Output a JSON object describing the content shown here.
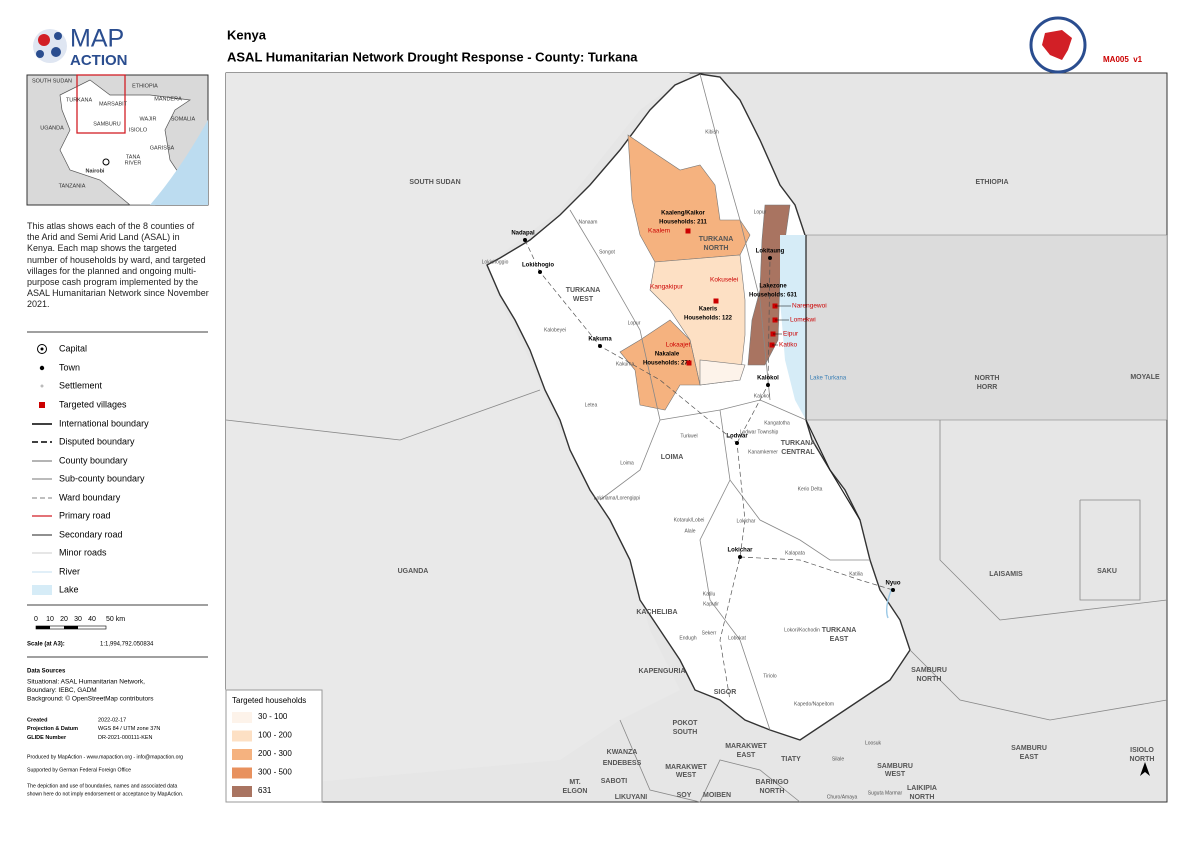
{
  "header": {
    "country": "Kenya",
    "title": "ASAL Humanitarian Network Drought Response - County: Turkana",
    "map_id": "MA005  v1"
  },
  "logo": {
    "top": "MAP",
    "bottom": "ACTION"
  },
  "inset": {
    "labels": [
      "SOUTH SUDAN",
      "ETHIOPIA",
      "TURKANA",
      "MARSABIT",
      "MANDERA",
      "SOMALIA",
      "UGANDA",
      "SAMBURU",
      "WAJIR",
      "ISIOLO",
      "GARISSA",
      "TANA",
      "RIVER",
      "Nairobi",
      "TANZANIA"
    ]
  },
  "description": "This atlas shows each of the 8 counties of the Arid and Semi Arid Land (ASAL) in Kenya. Each map shows the targeted number of households by ward, and targeted villages for the planned and ongoing multi-purpose cash program implemented by the ASAL Humanitarian Network since November 2021.",
  "legend": {
    "items": [
      "Capital",
      "Town",
      "Settlement",
      "Targeted villages",
      "International boundary",
      "Disputed boundary",
      "County boundary",
      "Sub-county boundary",
      "Ward boundary",
      "Primary road",
      "Secondary road",
      "Minor roads",
      "River",
      "Lake"
    ]
  },
  "scale": {
    "ticks": [
      "0",
      "10",
      "20",
      "30",
      "40",
      "50 km"
    ],
    "label": "Scale (at A3):",
    "value": "1:1,994,792.050834"
  },
  "sources": {
    "title": "Data Sources",
    "lines": [
      "Situational: ASAL Humanitarian Network,",
      "Boundary: IEBC, GADM",
      "Background: © OpenStreetMap contributors"
    ]
  },
  "metadata": {
    "rows": [
      [
        "Created",
        "2022-02-17"
      ],
      [
        "Projection & Datum",
        "WGS 84 / UTM zone 37N"
      ],
      [
        "GLIDE Number",
        "DR-2021-000111-KEN"
      ]
    ]
  },
  "footer": [
    "Produced by MapAction - www.mapaction.org - info@mapaction.org",
    "Supported by German Federal Foreign Office",
    "The depiction and use of boundaries, names and associated data",
    "shown here do not imply endorsement or acceptance by MapAction."
  ],
  "map": {
    "areas": [
      "SOUTH SUDAN",
      "ETHIOPIA",
      "TURKANA",
      "WEST",
      "TURKANA",
      "NORTH",
      "NORTH",
      "HORR",
      "MOYALE",
      "LOIMA",
      "TURKANA",
      "CENTRAL",
      "UGANDA",
      "LAISAMIS",
      "SAKU",
      "KACHELIBA",
      "TURKANA",
      "EAST",
      "KAPENGURIA",
      "SIGOR",
      "SAMBURU",
      "NORTH",
      "POKOT",
      "SOUTH",
      "KWANZA",
      "ENDEBESS",
      "MARAKWET",
      "EAST",
      "MARAKWET",
      "WEST",
      "TIATY",
      "SAMBURU",
      "EAST",
      "SAMBURU",
      "WEST",
      "ISIOLO",
      "NORTH",
      "MT.",
      "ELGON",
      "SABOTI",
      "BARINGO",
      "NORTH",
      "LAIKIPIA",
      "NORTH",
      "LIKUYANI",
      "SOY",
      "MOIBEN"
    ],
    "lake": "Lake Turkana",
    "towns": [
      "Nadapal",
      "Lokichogio",
      "Kakuma",
      "Lokitaung",
      "Kalokol",
      "Lodwar",
      "Lokichar",
      "Nyuo"
    ],
    "settlements": [
      "Kibish",
      "Lopur",
      "Nanaam",
      "Lokichoggio",
      "Songot",
      "Kalobeyei",
      "Lopur",
      "Kakuma",
      "Letea",
      "Turkwel",
      "Loima",
      "Kerio Delta",
      "Lodwar Township",
      "Kanamkemer",
      "Kangatotha",
      "Kalokol",
      "Lokiriama/Lorengippi",
      "Kotaruk/Lobei",
      "Alale",
      "Lokichar",
      "Kalapata",
      "Katilia",
      "Katilu",
      "Kaputir",
      "Lokori/Kochodin",
      "Lobokat",
      "Endugh",
      "Sekerr",
      "Kapedo/Napeitom",
      "Silale",
      "Loosuk",
      "Churo/Amaya",
      "Suguta Marmar",
      "Tiriolo"
    ],
    "wards": [
      "Kaaleng/Kaikor",
      "Households: 211",
      "Kaeris",
      "Households: 122",
      "Lakezone",
      "Households: 631",
      "Nakalale",
      "Households: 271"
    ],
    "villages": [
      "Kaalem",
      "Kangakipur",
      "Kokuselei",
      "Lokaajet",
      "Narengewoi",
      "Lomekwi",
      "Eipur",
      "Katiko"
    ]
  },
  "choropleth_legend": {
    "title": "Targeted households",
    "classes": [
      {
        "label": "30 - 100",
        "color": "#fdf3ea"
      },
      {
        "label": "100 - 200",
        "color": "#fde0c4"
      },
      {
        "label": "200 - 300",
        "color": "#f5b27f"
      },
      {
        "label": "300 - 500",
        "color": "#e8915e"
      },
      {
        "label": "631",
        "color": "#a97461"
      }
    ]
  }
}
